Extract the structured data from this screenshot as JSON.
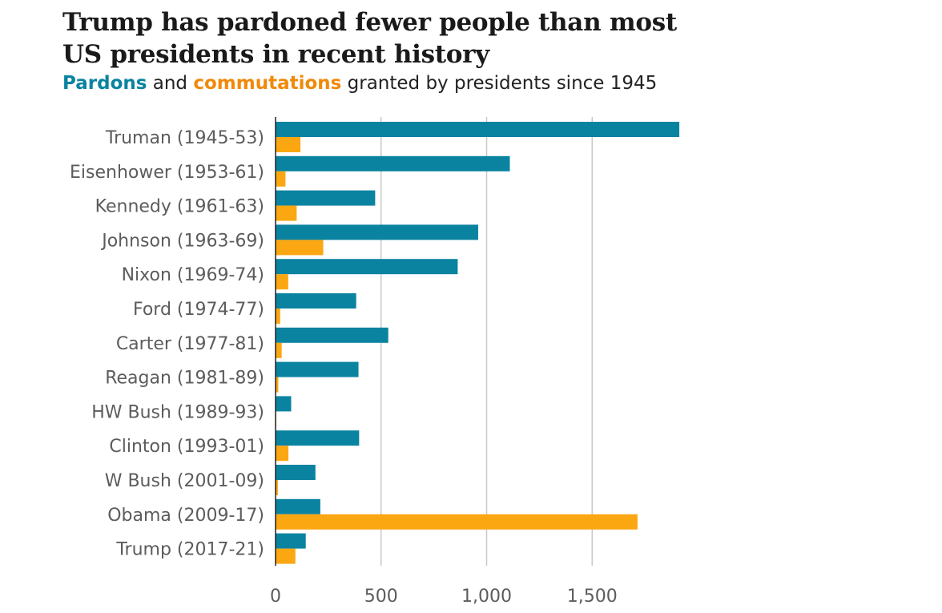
{
  "header": {
    "title_line1": "Trump has pardoned fewer people than most",
    "title_line2": "US presidents in recent history",
    "subtitle_pardons": "Pardons",
    "subtitle_and": " and ",
    "subtitle_commutations": "commutations",
    "subtitle_rest": " granted by presidents since 1945"
  },
  "colors": {
    "pardons": "#0a83a0",
    "commutations": "#fba712",
    "grid": "#c8c8c8",
    "axis": "#222222",
    "tick_label": "#5c5c5c"
  },
  "chart_data": {
    "type": "bar",
    "orientation": "horizontal",
    "categories": [
      "Truman (1945-53)",
      "Eisenhower (1953-61)",
      "Kennedy (1961-63)",
      "Johnson (1963-69)",
      "Nixon (1969-74)",
      "Ford (1974-77)",
      "Carter (1977-81)",
      "Reagan (1981-89)",
      "HW Bush (1989-93)",
      "Clinton (1993-01)",
      "W Bush (2001-09)",
      "Obama (2009-17)",
      "Trump (2017-21)"
    ],
    "series": [
      {
        "name": "Pardons",
        "values": [
          1913,
          1110,
          472,
          960,
          863,
          382,
          534,
          393,
          74,
          396,
          189,
          212,
          143
        ]
      },
      {
        "name": "Commutations",
        "values": [
          118,
          47,
          100,
          226,
          60,
          22,
          29,
          13,
          3,
          61,
          11,
          1715,
          94
        ]
      }
    ],
    "xlim": [
      0,
      1950
    ],
    "xticks": [
      0,
      500,
      1000,
      1500
    ],
    "xtick_labels": [
      "0",
      "500",
      "1,000",
      "1,500"
    ],
    "grid": true
  }
}
